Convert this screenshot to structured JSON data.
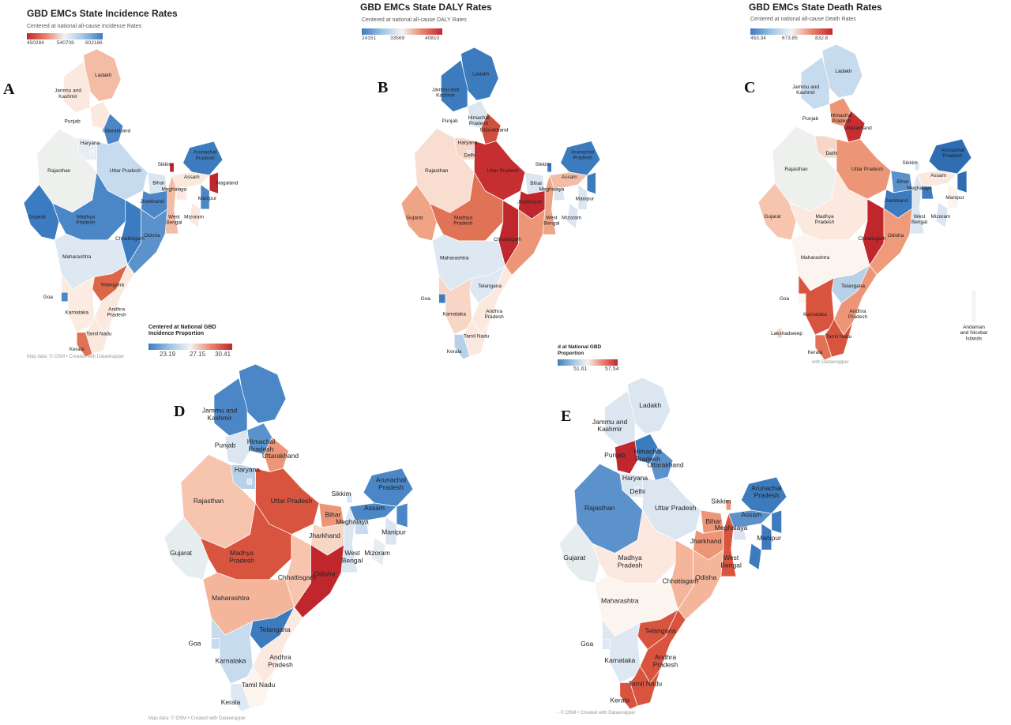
{
  "panels": [
    {
      "letter": "A",
      "title": "GBD EMCs State Incidence Rates",
      "subtitle": "Centered at national all-cause Incidence Rates",
      "legend_title": "",
      "legend_ticks": [
        "450284",
        "540708",
        "602186"
      ],
      "legend_colors": [
        "#c0272d",
        "#e8836b",
        "#f3f3f3",
        "#9cc3e3",
        "#3d7bbf"
      ],
      "footer": "Map data: © OSM • Created with Datawrapper",
      "states": {
        "ladakh": "#f4bca5",
        "jk": "#fbe9e0",
        "himachal": "#fbe9e0",
        "punjab": "#ffffff",
        "haryana": "#e6edf3",
        "uttarakhand": "#4c86c6",
        "delhi": "#e6edf3",
        "rajasthan": "#eef0ee",
        "up": "#c6dbee",
        "bihar": "#dbe6f1",
        "gujarat": "#3b7bc2",
        "mp": "#4b86c6",
        "jharkhand": "#4b86c6",
        "wb": "#f4bca5",
        "chhattisgarh": "#3c7bc1",
        "odisha": "#5c92cb",
        "maharashtra": "#dde8f2",
        "telangana": "#dd6548",
        "andhra": "#fbe9e0",
        "karnataka": "#fcebe1",
        "goa": "#4b86c6",
        "tamilnadu": "#fbe9e0",
        "kerala": "#e07256",
        "ne_north": "#3d7bbf",
        "assam": "#fbe9e0",
        "meghalaya": "#fbe9e0",
        "nagaland": "#c0272d",
        "manipur": "#4b86c6",
        "mizoram": "#fbe9e0",
        "sikkim": "#c0272d",
        "lakshadweep": "",
        "andaman": ""
      },
      "labels": {
        "ladakh": "Ladakh",
        "jk": "Jammu and\nKashmir",
        "punjab": "Punjab",
        "uttarakhand": "Uttarakhand",
        "haryana": "Haryana",
        "rajasthan": "Rajasthan",
        "up": "Uttar Pradesh",
        "sikkim": "Sikkim",
        "arunachal": "Arunachal\nPradesh",
        "assam": "Assam",
        "nagaland": "Nagaland",
        "meghalaya": "Meghalaya",
        "manipur": "Manipur",
        "bihar": "Bihar",
        "gujarat": "Gujarat",
        "mp": "Madhya\nPradesh",
        "jharkhand": "Jharkhand",
        "wb": "West\nBengal",
        "mizoram": "Mizoram",
        "chhattisgarh": "Chhattisgarh",
        "odisha": "Odisha",
        "maharashtra": "Maharashtra",
        "telangana": "Telangana",
        "goa": "Goa",
        "andhra": "Andhra\nPradesh",
        "karnataka": "Karnataka",
        "tamilnadu": "Tamil Nadu",
        "kerala": "Kerala"
      }
    },
    {
      "letter": "B",
      "title": "GBD EMCs State DALY Rates",
      "subtitle": "Centered at national all-cause DALY Rates",
      "legend_title": "",
      "legend_ticks": [
        "24151",
        "33569",
        "40810"
      ],
      "legend_colors": [
        "#3d7bbf",
        "#9cc3e3",
        "#f3f3f3",
        "#e8836b",
        "#c0272d"
      ],
      "footer": "",
      "states": {
        "ladakh": "#3d7bbf",
        "jk": "#3d7bbf",
        "himachal": "#dbe6f1",
        "punjab": "#ffffff",
        "haryana": "#f7d6c6",
        "uttarakhand": "#d0503f",
        "delhi": "#dbe6f1",
        "rajasthan": "#f8ddd0",
        "up": "#c62f31",
        "bihar": "#dbe6f1",
        "gujarat": "#efa486",
        "mp": "#e07256",
        "jharkhand": "#c0272d",
        "wb": "#efa486",
        "chhattisgarh": "#c0272d",
        "odisha": "#ec9677",
        "maharashtra": "#dde8f2",
        "telangana": "#dde8f2",
        "andhra": "#fbe9e0",
        "karnataka": "#f7d6c6",
        "goa": "#3d7bbf",
        "tamilnadu": "#fbe9e0",
        "kerala": "#b7d1e8",
        "ne_north": "#3d7bbf",
        "assam": "#f4bca5",
        "meghalaya": "#dbe6f1",
        "nagaland": "#3d7bbf",
        "manipur": "#dbe6f1",
        "mizoram": "#dbe6f1",
        "sikkim": "#3d7bbf",
        "lakshadweep": "",
        "andaman": ""
      },
      "labels": {
        "ladakh": "Ladakh",
        "jk": "Jammu and\nKashmir",
        "himachal": "Himachal\nPradesh",
        "punjab": "Punjab",
        "uttarakhand": "Uttarakhand",
        "haryana": "Haryana",
        "delhi": "Delhi",
        "rajasthan": "Rajasthan",
        "up": "Uttar Pradesh",
        "sikkim": "Sikkim",
        "arunachal": "Arunachal\nPradesh",
        "assam": "Assam",
        "meghalaya": "Meghalaya",
        "manipur": "Manipur",
        "bihar": "Bihar",
        "gujarat": "Gujarat",
        "mp": "Madhya\nPradesh",
        "jharkhand": "Jharkhand",
        "wb": "West\nBengal",
        "mizoram": "Mizoram",
        "chhattisgarh": "Chhatisgarh",
        "maharashtra": "Maharashtra",
        "telangana": "Telangana",
        "goa": "Goa",
        "karnataka": "Karnataka",
        "andhra": "Andhra\nPradesh",
        "tamilnadu": "Tamil Nadu",
        "kerala": "Kerala"
      }
    },
    {
      "letter": "C",
      "title": "GBD EMCs State Death Rates",
      "subtitle": "Centered at national all-cause Death Rates",
      "legend_title": "",
      "legend_ticks": [
        "453.34",
        "673.85",
        "832.8"
      ],
      "legend_colors": [
        "#3d7bbf",
        "#9cc3e3",
        "#f3f3f3",
        "#e8836b",
        "#c0272d"
      ],
      "footer": "with Datawrapper",
      "states": {
        "ladakh": "#c6dbee",
        "jk": "#c6dbee",
        "himachal": "#ec9677",
        "punjab": "#ffffff",
        "haryana": "#f7d6c6",
        "uttarakhand": "#c62f31",
        "delhi": "#dbe6f1",
        "rajasthan": "#eef0ee",
        "up": "#ec9677",
        "bihar": "#5c92cb",
        "gujarat": "#f7c5ae",
        "mp": "#fbe9e0",
        "jharkhand": "#3d7bbf",
        "wb": "#dbe6f1",
        "chhattisgarh": "#c0272d",
        "odisha": "#ef9a7b",
        "maharashtra": "#fbf4ef",
        "telangana": "#b7d1e8",
        "andhra": "#ec9677",
        "karnataka": "#d9543f",
        "goa": "#fbf4ef",
        "tamilnadu": "#d9543f",
        "kerala": "#e07256",
        "ne_north": "#2f6db3",
        "assam": "#fbe9e0",
        "meghalaya": "#3d7bbf",
        "nagaland": "#2f6db3",
        "manipur": "#fbf4ef",
        "mizoram": "#dbe6f1",
        "sikkim": "#dbe6f1",
        "lakshadweep": "#f7d6c6",
        "andaman": "#f3f3f3"
      },
      "labels": {
        "ladakh": "Ladakh",
        "jk": "Jammu and\nKashmir",
        "himachal": "Himachal\nPradesh",
        "punjab": "Punjab",
        "uttarakhand": "Uttarakhand",
        "delhi": "Delhi",
        "rajasthan": "Rajasthan",
        "up": "Uttar Pradesh",
        "sikkim": "Sikkim",
        "arunachal": "Arunachal\nPradesh",
        "assam": "Assam",
        "meghalaya": "Meghalaya",
        "manipur": "Manipur",
        "mizoram": "Mizoram",
        "bihar": "Bihar",
        "jharkhand": "Jharkhand",
        "wb": "West\nBengal",
        "gujarat": "Gujarat",
        "mp": "Madhya\nPradesh",
        "chhattisgarh": "Chhatisgarh",
        "odisha": "Odisha",
        "maharashtra": "Maharashtra",
        "telangana": "Telangana",
        "goa": "Goa",
        "karnataka": "Karnataka",
        "andhra": "Andhra\nPradesh",
        "tamilnadu": "Tamil Nadu",
        "kerala": "Kerala",
        "lakshadweep": "Lakshadweep",
        "andaman": "Andaman\nand Nicobar\nIslands"
      }
    },
    {
      "letter": "D",
      "title": "",
      "subtitle": "",
      "legend_title": "Centered at National GBD\nIncidence Proportion",
      "legend_ticks": [
        "23.19",
        "27.15",
        "30.41"
      ],
      "legend_colors": [
        "#3d7bbf",
        "#9cc3e3",
        "#f3f3f3",
        "#e8836b",
        "#c0272d"
      ],
      "footer": "Map data: © OSM • Created with Datawrapper",
      "states": {
        "ladakh": "#4b86c6",
        "jk": "#4b86c6",
        "himachal": "#5c92cb",
        "punjab": "#dbe6f1",
        "haryana": "#b7d1e8",
        "uttarakhand": "#ec9677",
        "delhi": "#dbe6f1",
        "rajasthan": "#f7c5ae",
        "up": "#d9543f",
        "bihar": "#ec9677",
        "gujarat": "#e6edee",
        "mp": "#d9543f",
        "jharkhand": "#f7d6c6",
        "wb": "#dbe6f1",
        "chhattisgarh": "#f7c5ae",
        "odisha": "#c0272d",
        "maharashtra": "#f4b59b",
        "telangana": "#3d7bbf",
        "andhra": "#fbe9e0",
        "karnataka": "#c6dbee",
        "goa": "#c6dbee",
        "tamilnadu": "#fbf4ef",
        "kerala": "#dde8f2",
        "ne_north": "#4b86c6",
        "assam": "#4b86c6",
        "meghalaya": "#c6dbee",
        "nagaland": "#4b86c6",
        "manipur": "#dbe6f1",
        "mizoram": "#e6edee",
        "sikkim": "#dbe6f1",
        "lakshadweep": "",
        "andaman": ""
      },
      "labels": {
        "jk": "Jammu and\nKashmir",
        "himachal": "Himachal\nPradesh",
        "punjab": "Punjab",
        "uttarakhand": "Uttarakhand",
        "haryana": "Haryana",
        "rajasthan": "Rajasthan",
        "up": "Uttar Pradesh",
        "sikkim": "Sikkim",
        "arunachal": "Arunachal\nPradesh",
        "assam": "Assam",
        "meghalaya": "Meghalaya",
        "manipur": "Manipur",
        "mizoram": "Mizoram",
        "bihar": "Bihar",
        "gujarat": "Gujarat",
        "mp": "Madhya\nPradesh",
        "jharkhand": "Jharkhand",
        "wb": "West\nBengal",
        "chhattisgarh": "Chhattisgarh",
        "odisha": "Odisha",
        "maharashtra": "Maharashtra",
        "telangana": "Telangana",
        "goa": "Goa",
        "andhra": "Andhra\nPradesh",
        "karnataka": "Karnataka",
        "tamilnadu": "Tamil Nadu",
        "kerala": "Kerala"
      }
    },
    {
      "letter": "E",
      "title": "",
      "subtitle": "",
      "legend_title": "d at National GBD\nProportion",
      "legend_ticks": [
        "51.61",
        "57.54"
      ],
      "legend_colors": [
        "#3d7bbf",
        "#9cc3e3",
        "#f3f3f3",
        "#e8836b",
        "#c0272d"
      ],
      "footer": "› © OSM • Created with Datawrapper",
      "states": {
        "ladakh": "#dbe6f1",
        "jk": "#dbe6f1",
        "himachal": "#3d7bbf",
        "punjab": "#c0272d",
        "haryana": "#dbe6f1",
        "uttarakhand": "#5c92cb",
        "delhi": "#dbe6f1",
        "rajasthan": "#5c92cb",
        "up": "#dbe6f1",
        "bihar": "#ec9677",
        "gujarat": "#e6edee",
        "mp": "#fbe9e0",
        "jharkhand": "#ec9677",
        "wb": "#d9543f",
        "chhattisgarh": "#f4b59b",
        "odisha": "#f4b59b",
        "maharashtra": "#fbf4ef",
        "telangana": "#d9543f",
        "andhra": "#d9543f",
        "karnataka": "#dde8f2",
        "goa": "#dde8f2",
        "tamilnadu": "#d9543f",
        "kerala": "#d9543f",
        "ne_north": "#3d7bbf",
        "assam": "#5c92cb",
        "meghalaya": "#dbe6f1",
        "nagaland": "#3d7bbf",
        "manipur": "#3d7bbf",
        "mizoram": "#3d7bbf",
        "sikkim": "#ec9677",
        "lakshadweep": "",
        "andaman": ""
      },
      "labels": {
        "ladakh": "Ladakh",
        "jk": "Jammu and\nKashmir",
        "himachal": "Himachal\nPradesh",
        "punjab": "Punjab",
        "uttarakhand": "Uttarakhand",
        "haryana": "Haryana",
        "delhi": "Delhi",
        "rajasthan": "Rajasthan",
        "up": "Uttar Pradesh",
        "sikkim": "Sikkim",
        "arunachal": "Arunachal\nPradesh",
        "assam": "Assam",
        "meghalaya": "Meghalaya",
        "manipur": "Manipur",
        "bihar": "Bihar",
        "gujarat": "Gujarat",
        "mp": "Madhya\nPradesh",
        "jharkhand": "Jharkhand",
        "wb": "West\nBengal",
        "chhattisgarh": "Chhatisgarh",
        "odisha": "Odisha",
        "maharashtra": "Maharashtra",
        "telangana": "Telangana",
        "goa": "Goa",
        "andhra": "Andhra\nPradesh",
        "karnataka": "Karnataka",
        "tamilnadu": "Tamil Nadu",
        "kerala": "Kerala"
      }
    }
  ]
}
